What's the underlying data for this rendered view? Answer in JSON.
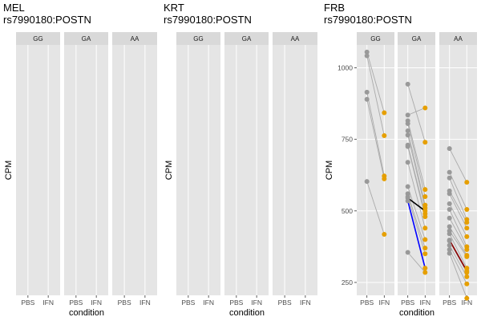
{
  "chart_data": [
    {
      "type": "scatter",
      "title": "MEL\nrs7990180:POSTN",
      "xlabel": "condition",
      "ylabel": "CPM",
      "facets": [
        "GG",
        "GA",
        "AA"
      ],
      "x_categories": [
        "PBS",
        "IFN"
      ],
      "y_ticks": [],
      "grid": true,
      "pairs": []
    },
    {
      "type": "scatter",
      "title": "KRT\nrs7990180:POSTN",
      "xlabel": "condition",
      "ylabel": "CPM",
      "facets": [
        "GG",
        "GA",
        "AA"
      ],
      "x_categories": [
        "PBS",
        "IFN"
      ],
      "y_ticks": [],
      "grid": true,
      "pairs": []
    },
    {
      "type": "scatter",
      "title": "FRB\nrs7990180:POSTN",
      "xlabel": "condition",
      "ylabel": "CPM",
      "facets": [
        "GG",
        "GA",
        "AA"
      ],
      "x_categories": [
        "PBS",
        "IFN"
      ],
      "y_ticks": [
        250,
        500,
        750,
        1000
      ],
      "ylim": [
        205,
        1080
      ],
      "grid": true,
      "point_colors": {
        "PBS": "#999999",
        "IFN": "#E69F00"
      },
      "line_colors": {
        "default": "#aaaaaa",
        "highlight_black": "#000000",
        "highlight_blue": "#0000ff",
        "highlight_red": "#8b0000"
      },
      "pairs": [
        {
          "facet": "GG",
          "pbs": 1055,
          "ifn": 843,
          "color": "default"
        },
        {
          "facet": "GG",
          "pbs": 1042,
          "ifn": 763,
          "color": "default"
        },
        {
          "facet": "GG",
          "pbs": 915,
          "ifn": 622,
          "color": "default"
        },
        {
          "facet": "GG",
          "pbs": 890,
          "ifn": 612,
          "color": "default"
        },
        {
          "facet": "GG",
          "pbs": 603,
          "ifn": 418,
          "color": "default"
        },
        {
          "facet": "GA",
          "pbs": 943,
          "ifn": 740,
          "color": "default"
        },
        {
          "facet": "GA",
          "pbs": 835,
          "ifn": 860,
          "color": "default"
        },
        {
          "facet": "GA",
          "pbs": 815,
          "ifn": 575,
          "color": "default"
        },
        {
          "facet": "GA",
          "pbs": 805,
          "ifn": 550,
          "color": "default"
        },
        {
          "facet": "GA",
          "pbs": 780,
          "ifn": 520,
          "color": "default"
        },
        {
          "facet": "GA",
          "pbs": 765,
          "ifn": 510,
          "color": "default"
        },
        {
          "facet": "GA",
          "pbs": 730,
          "ifn": 490,
          "color": "default"
        },
        {
          "facet": "GA",
          "pbs": 725,
          "ifn": 480,
          "color": "default"
        },
        {
          "facet": "GA",
          "pbs": 670,
          "ifn": 440,
          "color": "default"
        },
        {
          "facet": "GA",
          "pbs": 585,
          "ifn": 400,
          "color": "default"
        },
        {
          "facet": "GA",
          "pbs": 560,
          "ifn": 370,
          "color": "default"
        },
        {
          "facet": "GA",
          "pbs": 550,
          "ifn": 350,
          "color": "default"
        },
        {
          "facet": "GA",
          "pbs": 545,
          "ifn": 500,
          "color": "highlight_black"
        },
        {
          "facet": "GA",
          "pbs": 535,
          "ifn": 300,
          "color": "highlight_blue"
        },
        {
          "facet": "GA",
          "pbs": 355,
          "ifn": 285,
          "color": "default"
        },
        {
          "facet": "AA",
          "pbs": 718,
          "ifn": 600,
          "color": "default"
        },
        {
          "facet": "AA",
          "pbs": 635,
          "ifn": 505,
          "color": "default"
        },
        {
          "facet": "AA",
          "pbs": 615,
          "ifn": 470,
          "color": "default"
        },
        {
          "facet": "AA",
          "pbs": 570,
          "ifn": 460,
          "color": "default"
        },
        {
          "facet": "AA",
          "pbs": 560,
          "ifn": 440,
          "color": "default"
        },
        {
          "facet": "AA",
          "pbs": 525,
          "ifn": 410,
          "color": "default"
        },
        {
          "facet": "AA",
          "pbs": 505,
          "ifn": 375,
          "color": "default"
        },
        {
          "facet": "AA",
          "pbs": 475,
          "ifn": 365,
          "color": "default"
        },
        {
          "facet": "AA",
          "pbs": 445,
          "ifn": 345,
          "color": "default"
        },
        {
          "facet": "AA",
          "pbs": 430,
          "ifn": 340,
          "color": "default"
        },
        {
          "facet": "AA",
          "pbs": 420,
          "ifn": 300,
          "color": "default"
        },
        {
          "facet": "AA",
          "pbs": 395,
          "ifn": 285,
          "color": "default"
        },
        {
          "facet": "AA",
          "pbs": 380,
          "ifn": 270,
          "color": "default"
        },
        {
          "facet": "AA",
          "pbs": 365,
          "ifn": 245,
          "color": "default"
        },
        {
          "facet": "AA",
          "pbs": 352,
          "ifn": 195,
          "color": "default"
        },
        {
          "facet": "AA",
          "pbs": 398,
          "ifn": 290,
          "color": "highlight_red"
        }
      ]
    }
  ],
  "colors": {
    "panel_background": "#e5e5e5",
    "strip_background": "#d9d9d9",
    "grid_major": "#ffffff"
  }
}
